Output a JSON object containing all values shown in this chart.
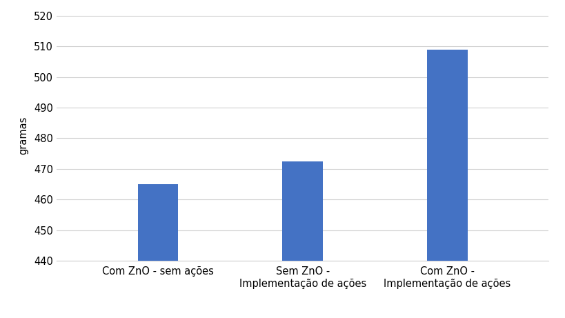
{
  "categories": [
    "Com ZnO - sem ações",
    "Sem ZnO -\nImplementação de ações",
    "Com ZnO -\nImplementação de ações"
  ],
  "values": [
    465,
    472.5,
    509
  ],
  "bar_color": "#4472C4",
  "ylabel": "gramas",
  "ylim": [
    440,
    522
  ],
  "yticks": [
    440,
    450,
    460,
    470,
    480,
    490,
    500,
    510,
    520
  ],
  "background_color": "#ffffff",
  "grid_color": "#d0d0d0",
  "bar_width": 0.28,
  "tick_fontsize": 10.5,
  "label_fontsize": 10.5
}
